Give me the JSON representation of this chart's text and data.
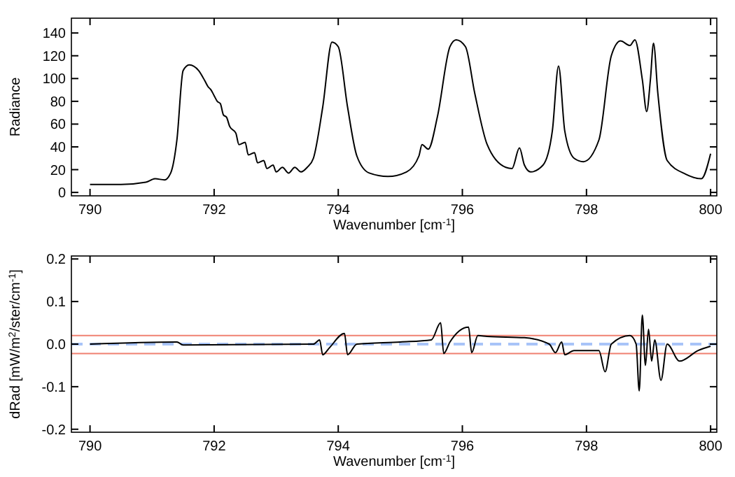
{
  "chart_data": [
    {
      "type": "line",
      "xlabel": "Wavenumber [cm$^{-1}$]",
      "ylabel": "Radiance",
      "xlim": [
        789.7,
        800.1
      ],
      "ylim": [
        -3,
        153
      ],
      "xticks": [
        790,
        792,
        794,
        796,
        798,
        800
      ],
      "yticks": [
        0,
        20,
        40,
        60,
        80,
        100,
        120,
        140
      ],
      "grid": false,
      "series": [
        {
          "color": "#000000",
          "x": [
            790,
            790.3,
            790.5,
            790.9,
            791.05,
            791.2,
            791.3,
            791.4,
            791.5,
            791.6,
            791.75,
            791.85,
            791.9,
            791.95,
            792,
            792.05,
            792.1,
            792.15,
            792.2,
            792.25,
            792.35,
            792.4,
            792.5,
            792.55,
            792.65,
            792.7,
            792.8,
            792.85,
            792.95,
            793.0,
            793.1,
            793.2,
            793.3,
            793.4,
            793.5,
            793.6,
            793.75,
            793.9,
            794.0,
            794.15,
            794.3,
            794.5,
            794.8,
            795.1,
            795.3,
            795.35,
            795.45,
            795.6,
            795.8,
            795.9,
            796.05,
            796.2,
            796.4,
            796.7,
            796.8,
            796.92,
            797.0,
            797.1,
            797.3,
            797.45,
            797.55,
            797.65,
            797.8,
            797.95,
            798.2,
            798.4,
            798.55,
            798.7,
            798.78,
            798.9,
            798.97,
            799.03,
            799.08,
            799.15,
            799.3,
            799.6,
            799.85,
            800
          ],
          "values": [
            7,
            7,
            7,
            9,
            12,
            11,
            17,
            46,
            107,
            112,
            107,
            98,
            93,
            90,
            85,
            80,
            78,
            68,
            66,
            58,
            52,
            42,
            44,
            33,
            35,
            26,
            28,
            21,
            24,
            18,
            22,
            17,
            22,
            18,
            22,
            30,
            75,
            132,
            128,
            75,
            32,
            17,
            14,
            18,
            32,
            42,
            38,
            67,
            128,
            134,
            128,
            87,
            42,
            22,
            21,
            39,
            24,
            18,
            24,
            54,
            111,
            54,
            30,
            27,
            46,
            120,
            133,
            129,
            134,
            99,
            71,
            99,
            131,
            87,
            28,
            16,
            12,
            34
          ]
        }
      ]
    },
    {
      "type": "line",
      "xlabel": "Wavenumber [cm$^{-1}$]",
      "ylabel": "dRad [mW/m$^{2}$/ster/cm$^{-1}$]",
      "xlim": [
        789.7,
        800.1
      ],
      "ylim": [
        -0.207,
        0.207
      ],
      "xticks": [
        790,
        792,
        794,
        796,
        798,
        800
      ],
      "yticks": [
        {
          "value": -0.2,
          "label": "-0.2"
        },
        {
          "value": -0.1,
          "label": "-0.1"
        },
        {
          "value": 0,
          "label": "0.0"
        },
        {
          "value": 0.1,
          "label": "0.1"
        },
        {
          "value": 0.2,
          "label": "0.2"
        }
      ],
      "grid": false,
      "ref_lines": [
        {
          "axis": "y",
          "value": 0.02,
          "color": "#f08070",
          "line_style": "solid"
        },
        {
          "axis": "y",
          "value": -0.022,
          "color": "#f08070",
          "line_style": "solid"
        },
        {
          "axis": "y",
          "value": 0,
          "color": "#a8c4f8",
          "line_style": "dashed"
        }
      ],
      "series": [
        {
          "color": "#000000",
          "x": [
            790,
            791.4,
            791.5,
            793.6,
            793.7,
            793.75,
            793.85,
            794.1,
            794.15,
            794.3,
            795,
            795.5,
            795.65,
            795.7,
            795.8,
            796.1,
            796.15,
            796.25,
            796.4,
            797,
            797.4,
            797.5,
            797.6,
            797.65,
            797.8,
            798.2,
            798.3,
            798.4,
            798.7,
            798.8,
            798.85,
            798.9,
            798.95,
            799.0,
            799.05,
            799.1,
            799.2,
            799.3,
            799.5,
            799.8,
            800
          ],
          "values": [
            0,
            0.005,
            -0.002,
            0,
            0.01,
            -0.025,
            -0.01,
            0.025,
            -0.025,
            0,
            0.005,
            0.01,
            0.05,
            -0.022,
            0.005,
            0.04,
            -0.02,
            0.02,
            0.018,
            0.015,
            0,
            -0.02,
            0.005,
            -0.025,
            -0.015,
            -0.015,
            -0.065,
            0,
            0.02,
            0,
            -0.11,
            0.068,
            -0.05,
            0.035,
            -0.04,
            0.01,
            -0.085,
            0,
            -0.04,
            -0.015,
            -0.005
          ]
        }
      ]
    }
  ]
}
